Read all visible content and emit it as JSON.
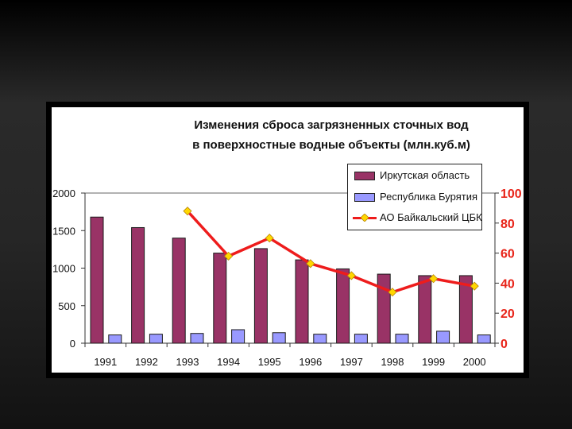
{
  "chart_data": {
    "type": "bar",
    "title": "Изменения сброса загрязненных сточных вод",
    "subtitle": "в поверхностные водные объекты (млн.куб.м)",
    "categories": [
      "1991",
      "1992",
      "1993",
      "1994",
      "1995",
      "1996",
      "1997",
      "1998",
      "1999",
      "2000"
    ],
    "series": [
      {
        "name": "Иркутская область",
        "kind": "bar",
        "axis": "left",
        "color": "#993366",
        "values": [
          1680,
          1540,
          1400,
          1200,
          1260,
          1110,
          990,
          920,
          900,
          900
        ]
      },
      {
        "name": "Республика Бурятия",
        "kind": "bar",
        "axis": "left",
        "color": "#9999ff",
        "values": [
          110,
          120,
          130,
          180,
          140,
          120,
          120,
          120,
          160,
          110
        ]
      },
      {
        "name": "АО Байкальский ЦБК",
        "kind": "line",
        "axis": "right",
        "color": "#ee1c1c",
        "marker_color": "#ffd700",
        "values": [
          null,
          null,
          88,
          58,
          70,
          53,
          45,
          34,
          43,
          38
        ]
      }
    ],
    "y_left": {
      "min": 0,
      "max": 2000,
      "ticks": [
        "0",
        "500",
        "1000",
        "1500",
        "2000"
      ],
      "tick_values": [
        0,
        500,
        1000,
        1500,
        2000
      ]
    },
    "y_right": {
      "min": 0,
      "max": 100,
      "ticks": [
        "0",
        "20",
        "40",
        "60",
        "80",
        "100"
      ],
      "tick_values": [
        0,
        20,
        40,
        60,
        80,
        100
      ],
      "color": "#e8251a"
    },
    "grid": false,
    "legend_position": "top-right"
  }
}
